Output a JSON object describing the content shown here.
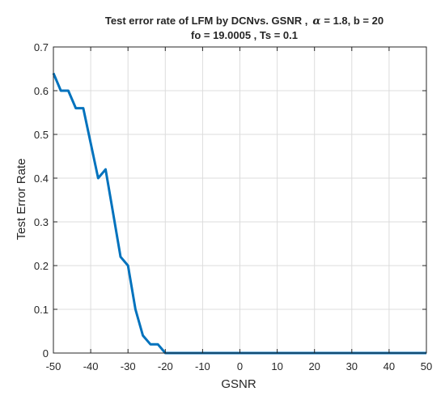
{
  "chart_data": {
    "type": "line",
    "title_line1_prefix": "Test error rate of LFM by DCNvs. GSNR ,",
    "title_alpha_symbol": "α",
    "title_line1_suffix": "= 1.8, b = 20",
    "title_line2": "fo = 19.0005 , Ts = 0.1",
    "xlabel": "GSNR",
    "ylabel": "Test Error Rate",
    "xlim": [
      -50,
      50
    ],
    "ylim": [
      0,
      0.7
    ],
    "xticks": [
      -50,
      -40,
      -30,
      -20,
      -10,
      0,
      10,
      20,
      30,
      40,
      50
    ],
    "yticks": [
      0,
      0.1,
      0.2,
      0.3,
      0.4,
      0.5,
      0.6,
      0.7
    ],
    "xtick_labels": [
      "-50",
      "-40",
      "-30",
      "-20",
      "-10",
      "0",
      "10",
      "20",
      "30",
      "40",
      "50"
    ],
    "ytick_labels": [
      "0",
      "0.1",
      "0.2",
      "0.3",
      "0.4",
      "0.5",
      "0.6",
      "0.7"
    ],
    "grid": true,
    "box": true,
    "line_color": "#0072BD",
    "series": [
      {
        "x": [
          -50,
          -48,
          -46,
          -44,
          -42,
          -40,
          -38,
          -36,
          -34,
          -32,
          -30,
          -28,
          -26,
          -24,
          -22,
          -20,
          -18,
          -16,
          -14,
          -12,
          -10,
          -8,
          -6,
          -4,
          -2,
          0,
          2,
          4,
          6,
          8,
          10,
          12,
          14,
          16,
          18,
          20,
          22,
          24,
          26,
          28,
          30,
          32,
          34,
          36,
          38,
          40,
          42,
          44,
          46,
          48,
          50
        ],
        "y": [
          0.64,
          0.6,
          0.6,
          0.56,
          0.56,
          0.48,
          0.4,
          0.42,
          0.32,
          0.22,
          0.2,
          0.1,
          0.04,
          0.02,
          0.02,
          0,
          0,
          0,
          0,
          0,
          0,
          0,
          0,
          0,
          0,
          0,
          0,
          0,
          0,
          0,
          0,
          0,
          0,
          0,
          0,
          0,
          0,
          0,
          0,
          0,
          0,
          0,
          0,
          0,
          0,
          0,
          0,
          0,
          0,
          0,
          0
        ]
      }
    ]
  }
}
